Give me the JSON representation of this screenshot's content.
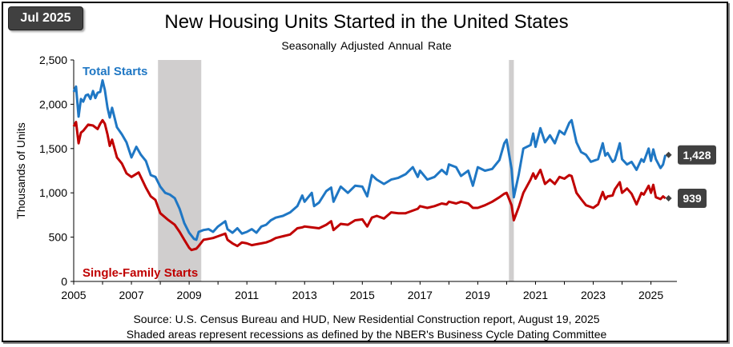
{
  "badge": "Jul 2025",
  "title": "New Housing Units Started in the United States",
  "subtitle": "Seasonally Adjusted  Annual  Rate",
  "source_line1": "Source:  U.S. Census Bureau and HUD, New Residential Construction report, August 19, 2025",
  "source_line2": "Shaded areas represent recessions as defined by the NBER's Business Cycle Dating Committee",
  "colors": {
    "total": "#1F77C4",
    "single": "#C00000",
    "recession": "#D0CECE",
    "callout": "#404040"
  },
  "chart_data": {
    "type": "line",
    "ylabel": "Thousands of Units",
    "xlim": [
      2005,
      2025.9
    ],
    "ylim": [
      0,
      2500
    ],
    "xticks": [
      {
        "value": 2005,
        "label": "2005"
      },
      {
        "value": 2007,
        "label": "2007"
      },
      {
        "value": 2009,
        "label": "2009"
      },
      {
        "value": 2011,
        "label": "2011"
      },
      {
        "value": 2013,
        "label": "2013"
      },
      {
        "value": 2015,
        "label": "2015"
      },
      {
        "value": 2017,
        "label": "2017"
      },
      {
        "value": 2019,
        "label": "2019"
      },
      {
        "value": 2021,
        "label": "2021"
      },
      {
        "value": 2023,
        "label": "2023"
      },
      {
        "value": 2025,
        "label": "2025"
      }
    ],
    "yticks": [
      {
        "value": 0,
        "label": "0"
      },
      {
        "value": 500,
        "label": "500"
      },
      {
        "value": 1000,
        "label": "1,000"
      },
      {
        "value": 1500,
        "label": "1,500"
      },
      {
        "value": 2000,
        "label": "2,000"
      },
      {
        "value": 2500,
        "label": "2,500"
      }
    ],
    "recessions": [
      [
        2007.92,
        2009.42
      ],
      [
        2020.08,
        2020.25
      ]
    ],
    "series": [
      {
        "name": "Total Starts",
        "color": "#1F77C4",
        "last_label": "1,428",
        "last_value": 1428,
        "points": [
          [
            2005.0,
            2140
          ],
          [
            2005.08,
            2200
          ],
          [
            2005.17,
            1860
          ],
          [
            2005.25,
            2060
          ],
          [
            2005.33,
            2030
          ],
          [
            2005.42,
            2100
          ],
          [
            2005.5,
            2110
          ],
          [
            2005.58,
            2060
          ],
          [
            2005.67,
            2150
          ],
          [
            2005.75,
            2070
          ],
          [
            2005.83,
            2130
          ],
          [
            2005.92,
            2140
          ],
          [
            2006.0,
            2270
          ],
          [
            2006.08,
            2160
          ],
          [
            2006.17,
            1960
          ],
          [
            2006.25,
            1850
          ],
          [
            2006.33,
            1960
          ],
          [
            2006.5,
            1740
          ],
          [
            2006.67,
            1660
          ],
          [
            2006.83,
            1570
          ],
          [
            2007.0,
            1400
          ],
          [
            2007.17,
            1520
          ],
          [
            2007.33,
            1430
          ],
          [
            2007.5,
            1360
          ],
          [
            2007.67,
            1200
          ],
          [
            2007.83,
            1180
          ],
          [
            2008.0,
            1070
          ],
          [
            2008.17,
            1000
          ],
          [
            2008.33,
            980
          ],
          [
            2008.5,
            940
          ],
          [
            2008.67,
            820
          ],
          [
            2008.83,
            660
          ],
          [
            2009.0,
            550
          ],
          [
            2009.17,
            480
          ],
          [
            2009.25,
            470
          ],
          [
            2009.33,
            560
          ],
          [
            2009.5,
            580
          ],
          [
            2009.67,
            590
          ],
          [
            2009.83,
            560
          ],
          [
            2010.0,
            620
          ],
          [
            2010.25,
            680
          ],
          [
            2010.33,
            590
          ],
          [
            2010.5,
            550
          ],
          [
            2010.67,
            600
          ],
          [
            2010.83,
            540
          ],
          [
            2011.0,
            560
          ],
          [
            2011.17,
            590
          ],
          [
            2011.33,
            550
          ],
          [
            2011.5,
            620
          ],
          [
            2011.67,
            640
          ],
          [
            2011.83,
            690
          ],
          [
            2012.0,
            720
          ],
          [
            2012.25,
            740
          ],
          [
            2012.5,
            780
          ],
          [
            2012.75,
            850
          ],
          [
            2012.92,
            970
          ],
          [
            2013.0,
            900
          ],
          [
            2013.25,
            1000
          ],
          [
            2013.33,
            850
          ],
          [
            2013.5,
            890
          ],
          [
            2013.75,
            1020
          ],
          [
            2013.92,
            1060
          ],
          [
            2014.0,
            900
          ],
          [
            2014.25,
            1070
          ],
          [
            2014.5,
            1000
          ],
          [
            2014.75,
            1080
          ],
          [
            2015.0,
            1070
          ],
          [
            2015.17,
            960
          ],
          [
            2015.33,
            1200
          ],
          [
            2015.5,
            1150
          ],
          [
            2015.75,
            1100
          ],
          [
            2016.0,
            1150
          ],
          [
            2016.25,
            1170
          ],
          [
            2016.5,
            1210
          ],
          [
            2016.75,
            1290
          ],
          [
            2016.92,
            1180
          ],
          [
            2017.0,
            1250
          ],
          [
            2017.25,
            1150
          ],
          [
            2017.5,
            1180
          ],
          [
            2017.75,
            1260
          ],
          [
            2017.92,
            1210
          ],
          [
            2018.0,
            1320
          ],
          [
            2018.25,
            1290
          ],
          [
            2018.42,
            1190
          ],
          [
            2018.67,
            1250
          ],
          [
            2018.83,
            1080
          ],
          [
            2019.0,
            1290
          ],
          [
            2019.25,
            1250
          ],
          [
            2019.5,
            1270
          ],
          [
            2019.75,
            1370
          ],
          [
            2019.92,
            1560
          ],
          [
            2020.0,
            1600
          ],
          [
            2020.17,
            1270
          ],
          [
            2020.25,
            950
          ],
          [
            2020.42,
            1210
          ],
          [
            2020.58,
            1500
          ],
          [
            2020.83,
            1540
          ],
          [
            2020.92,
            1670
          ],
          [
            2021.0,
            1520
          ],
          [
            2021.17,
            1730
          ],
          [
            2021.33,
            1570
          ],
          [
            2021.5,
            1650
          ],
          [
            2021.67,
            1560
          ],
          [
            2021.83,
            1700
          ],
          [
            2022.0,
            1660
          ],
          [
            2022.17,
            1790
          ],
          [
            2022.25,
            1820
          ],
          [
            2022.42,
            1570
          ],
          [
            2022.58,
            1460
          ],
          [
            2022.75,
            1430
          ],
          [
            2022.92,
            1350
          ],
          [
            2023.0,
            1360
          ],
          [
            2023.17,
            1380
          ],
          [
            2023.33,
            1560
          ],
          [
            2023.42,
            1420
          ],
          [
            2023.5,
            1450
          ],
          [
            2023.67,
            1350
          ],
          [
            2023.75,
            1370
          ],
          [
            2023.92,
            1560
          ],
          [
            2024.0,
            1380
          ],
          [
            2024.17,
            1320
          ],
          [
            2024.33,
            1350
          ],
          [
            2024.5,
            1260
          ],
          [
            2024.67,
            1380
          ],
          [
            2024.75,
            1350
          ],
          [
            2024.92,
            1500
          ],
          [
            2025.0,
            1360
          ],
          [
            2025.08,
            1490
          ],
          [
            2025.17,
            1380
          ],
          [
            2025.33,
            1280
          ],
          [
            2025.42,
            1320
          ],
          [
            2025.5,
            1428
          ]
        ]
      },
      {
        "name": "Single-Family Starts",
        "color": "#C00000",
        "last_label": "939",
        "last_value": 939,
        "points": [
          [
            2005.0,
            1750
          ],
          [
            2005.08,
            1800
          ],
          [
            2005.17,
            1560
          ],
          [
            2005.25,
            1680
          ],
          [
            2005.33,
            1700
          ],
          [
            2005.5,
            1770
          ],
          [
            2005.67,
            1760
          ],
          [
            2005.83,
            1720
          ],
          [
            2005.92,
            1780
          ],
          [
            2006.0,
            1820
          ],
          [
            2006.08,
            1780
          ],
          [
            2006.17,
            1660
          ],
          [
            2006.25,
            1530
          ],
          [
            2006.33,
            1600
          ],
          [
            2006.5,
            1400
          ],
          [
            2006.67,
            1330
          ],
          [
            2006.83,
            1220
          ],
          [
            2007.0,
            1180
          ],
          [
            2007.25,
            1230
          ],
          [
            2007.5,
            1060
          ],
          [
            2007.67,
            960
          ],
          [
            2007.83,
            920
          ],
          [
            2008.0,
            770
          ],
          [
            2008.25,
            700
          ],
          [
            2008.5,
            640
          ],
          [
            2008.67,
            560
          ],
          [
            2008.83,
            470
          ],
          [
            2009.0,
            380
          ],
          [
            2009.08,
            355
          ],
          [
            2009.25,
            370
          ],
          [
            2009.33,
            400
          ],
          [
            2009.5,
            470
          ],
          [
            2009.67,
            480
          ],
          [
            2009.83,
            490
          ],
          [
            2010.0,
            510
          ],
          [
            2010.25,
            540
          ],
          [
            2010.33,
            470
          ],
          [
            2010.5,
            430
          ],
          [
            2010.67,
            400
          ],
          [
            2010.83,
            440
          ],
          [
            2011.0,
            430
          ],
          [
            2011.17,
            410
          ],
          [
            2011.33,
            420
          ],
          [
            2011.5,
            430
          ],
          [
            2011.67,
            440
          ],
          [
            2011.83,
            460
          ],
          [
            2012.0,
            490
          ],
          [
            2012.25,
            510
          ],
          [
            2012.5,
            530
          ],
          [
            2012.75,
            600
          ],
          [
            2012.92,
            610
          ],
          [
            2013.0,
            620
          ],
          [
            2013.25,
            610
          ],
          [
            2013.5,
            600
          ],
          [
            2013.75,
            640
          ],
          [
            2013.92,
            680
          ],
          [
            2014.0,
            580
          ],
          [
            2014.25,
            650
          ],
          [
            2014.5,
            640
          ],
          [
            2014.75,
            690
          ],
          [
            2015.0,
            700
          ],
          [
            2015.17,
            620
          ],
          [
            2015.33,
            720
          ],
          [
            2015.5,
            740
          ],
          [
            2015.75,
            710
          ],
          [
            2016.0,
            780
          ],
          [
            2016.25,
            770
          ],
          [
            2016.5,
            770
          ],
          [
            2016.75,
            800
          ],
          [
            2016.92,
            820
          ],
          [
            2017.0,
            850
          ],
          [
            2017.25,
            830
          ],
          [
            2017.5,
            850
          ],
          [
            2017.75,
            880
          ],
          [
            2017.92,
            870
          ],
          [
            2018.0,
            900
          ],
          [
            2018.25,
            880
          ],
          [
            2018.42,
            900
          ],
          [
            2018.67,
            880
          ],
          [
            2018.83,
            830
          ],
          [
            2019.0,
            830
          ],
          [
            2019.25,
            860
          ],
          [
            2019.5,
            900
          ],
          [
            2019.75,
            950
          ],
          [
            2019.92,
            990
          ],
          [
            2020.0,
            1000
          ],
          [
            2020.17,
            860
          ],
          [
            2020.25,
            690
          ],
          [
            2020.42,
            840
          ],
          [
            2020.58,
            1000
          ],
          [
            2020.83,
            1150
          ],
          [
            2020.92,
            1220
          ],
          [
            2021.0,
            1160
          ],
          [
            2021.17,
            1260
          ],
          [
            2021.33,
            1100
          ],
          [
            2021.5,
            1150
          ],
          [
            2021.67,
            1100
          ],
          [
            2021.83,
            1180
          ],
          [
            2022.0,
            1160
          ],
          [
            2022.17,
            1200
          ],
          [
            2022.25,
            1190
          ],
          [
            2022.42,
            1000
          ],
          [
            2022.58,
            930
          ],
          [
            2022.75,
            860
          ],
          [
            2022.92,
            840
          ],
          [
            2023.0,
            830
          ],
          [
            2023.17,
            870
          ],
          [
            2023.33,
            1010
          ],
          [
            2023.42,
            930
          ],
          [
            2023.5,
            960
          ],
          [
            2023.67,
            970
          ],
          [
            2023.75,
            1040
          ],
          [
            2023.92,
            1120
          ],
          [
            2024.0,
            1000
          ],
          [
            2024.17,
            1050
          ],
          [
            2024.33,
            990
          ],
          [
            2024.5,
            870
          ],
          [
            2024.67,
            1000
          ],
          [
            2024.75,
            980
          ],
          [
            2024.92,
            1080
          ],
          [
            2025.0,
            1000
          ],
          [
            2025.08,
            1090
          ],
          [
            2025.17,
            950
          ],
          [
            2025.33,
            930
          ],
          [
            2025.42,
            960
          ],
          [
            2025.5,
            939
          ]
        ]
      }
    ]
  }
}
